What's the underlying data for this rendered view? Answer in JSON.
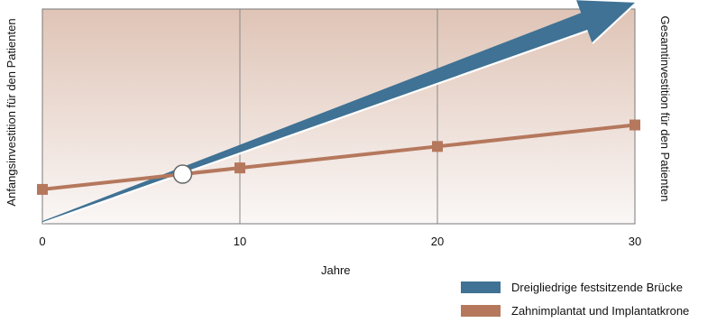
{
  "chart_data": {
    "type": "line",
    "xlabel": "Jahre",
    "ylabel_left": "Anfangsinvestition für den Patienten",
    "ylabel_right": "Gesamtinvestition für den Patienten",
    "xlim": [
      0,
      30
    ],
    "ylim": [
      0,
      100
    ],
    "grid": true,
    "x_ticks": [
      0,
      10,
      20,
      30
    ],
    "x_tick_labels": [
      "0",
      "10",
      "20",
      "30"
    ],
    "legend_position": "bottom-right",
    "crossover_x": 7.1,
    "series": [
      {
        "name": "Dreigliedrige festsitzende Brücke",
        "color": "#3f7294",
        "style": "arrow",
        "x": [
          0,
          30
        ],
        "y": [
          1,
          103
        ]
      },
      {
        "name": "Zahnimplantat und Implantatkrone",
        "color": "#b5785d",
        "style": "line-with-square-markers",
        "x": [
          0,
          10,
          20,
          30
        ],
        "y": [
          16,
          26,
          36,
          46
        ]
      }
    ],
    "background_gradient": [
      "#dfc4b6",
      "#faf7f6"
    ],
    "grid_color": "#888888"
  }
}
